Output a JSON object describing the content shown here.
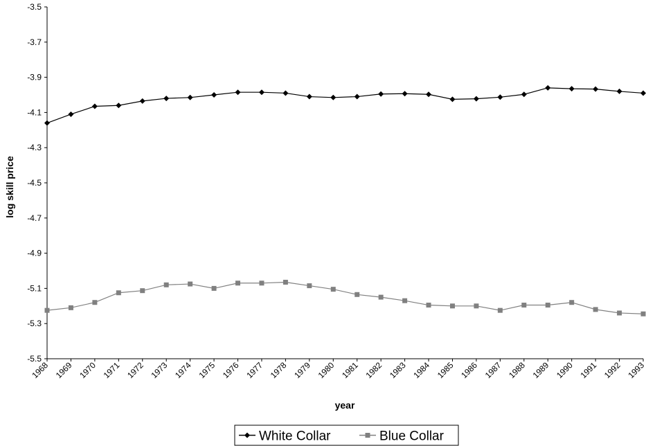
{
  "chart_data": {
    "type": "line",
    "title": "",
    "xlabel": "year",
    "ylabel": "log skill price",
    "ylim": [
      -5.5,
      -3.5
    ],
    "y_ticks": [
      "-3.5",
      "-3.7",
      "-3.9",
      "-4.1",
      "-4.3",
      "-4.5",
      "-4.7",
      "-4.9",
      "-5.1",
      "-5.3",
      "-5.5"
    ],
    "grid": false,
    "legend_position": "bottom",
    "x": [
      "1968",
      "1969",
      "1970",
      "1971",
      "1972",
      "1973",
      "1974",
      "1975",
      "1976",
      "1977",
      "1978",
      "1979",
      "1980",
      "1981",
      "1982",
      "1983",
      "1984",
      "1985",
      "1986",
      "1987",
      "1988",
      "1989",
      "1990",
      "1991",
      "1992",
      "1993"
    ],
    "series": [
      {
        "name": "White Collar",
        "marker": "diamond",
        "color": "#000000",
        "values": [
          -4.16,
          -4.11,
          -4.065,
          -4.06,
          -4.035,
          -4.02,
          -4.015,
          -4.0,
          -3.985,
          -3.985,
          -3.99,
          -4.01,
          -4.015,
          -4.01,
          -3.995,
          -3.993,
          -3.997,
          -4.025,
          -4.022,
          -4.013,
          -3.997,
          -3.96,
          -3.965,
          -3.967,
          -3.98,
          -3.99
        ]
      },
      {
        "name": "Blue Collar",
        "marker": "square",
        "color": "#808080",
        "values": [
          -5.225,
          -5.21,
          -5.18,
          -5.125,
          -5.113,
          -5.08,
          -5.075,
          -5.1,
          -5.07,
          -5.07,
          -5.065,
          -5.085,
          -5.105,
          -5.135,
          -5.15,
          -5.17,
          -5.195,
          -5.2,
          -5.2,
          -5.225,
          -5.195,
          -5.195,
          -5.18,
          -5.22,
          -5.24,
          -5.245
        ]
      }
    ]
  }
}
